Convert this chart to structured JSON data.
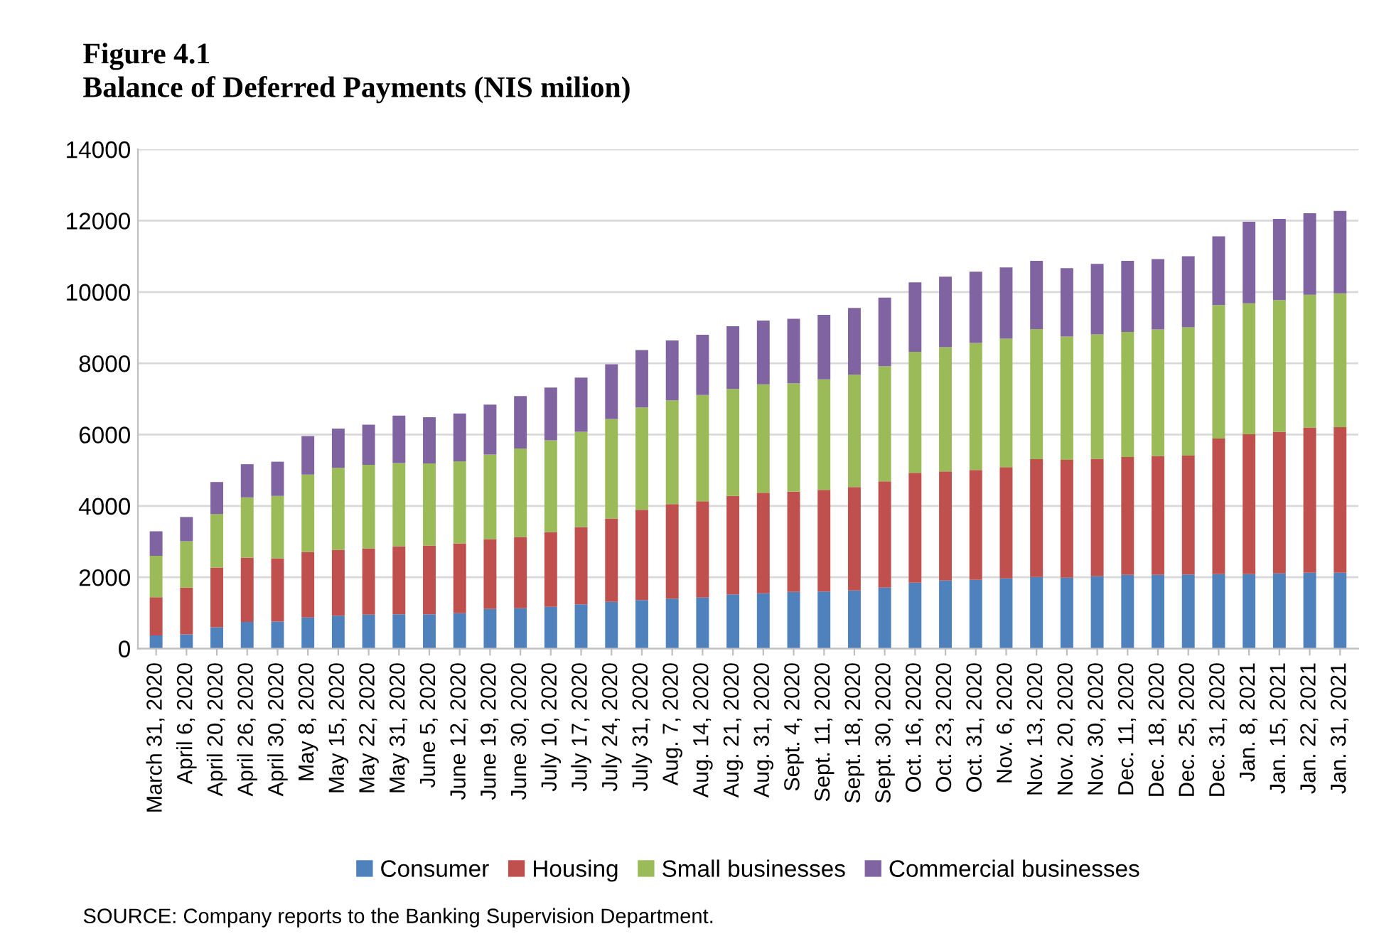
{
  "chart_data": {
    "type": "bar",
    "stacked": true,
    "title": "Figure 4.1",
    "subtitle": "Balance of Deferred Payments (NIS milion)",
    "categories": [
      "March 31, 2020",
      "April 6, 2020",
      "April 20, 2020",
      "April 26, 2020",
      "April 30, 2020",
      "May 8, 2020",
      "May 15, 2020",
      "May 22, 2020",
      "May 31, 2020",
      "June 5, 2020",
      "June 12, 2020",
      "June 19, 2020",
      "June 30, 2020",
      "July 10, 2020",
      "July 17, 2020",
      "July 24, 2020",
      "July 31, 2020",
      "Aug. 7, 2020",
      "Aug. 14, 2020",
      "Aug. 21, 2020",
      "Aug. 31, 2020",
      "Sept. 4, 2020",
      "Sept. 11, 2020",
      "Sept. 18, 2020",
      "Sept. 30, 2020",
      "Oct. 16, 2020",
      "Oct. 23, 2020",
      "Oct. 31, 2020",
      "Nov. 6, 2020",
      "Nov. 13, 2020",
      "Nov. 20, 2020",
      "Nov. 30, 2020",
      "Dec. 11, 2020",
      "Dec. 18, 2020",
      "Dec. 25, 2020",
      "Dec. 31, 2020",
      "Jan. 8, 2021",
      "Jan. 15, 2021",
      "Jan. 22, 2021",
      "Jan. 31, 2021"
    ],
    "series": [
      {
        "name": "Consumer",
        "color": "#4f81bd",
        "values": [
          370,
          400,
          600,
          750,
          760,
          870,
          920,
          950,
          960,
          960,
          990,
          1110,
          1130,
          1170,
          1240,
          1310,
          1360,
          1400,
          1430,
          1520,
          1550,
          1590,
          1600,
          1630,
          1710,
          1850,
          1910,
          1930,
          1970,
          2010,
          1990,
          2030,
          2070,
          2070,
          2080,
          2090,
          2090,
          2110,
          2130,
          2130
        ]
      },
      {
        "name": "Housing",
        "color": "#c0504d",
        "values": [
          1070,
          1310,
          1670,
          1800,
          1770,
          1840,
          1850,
          1860,
          1910,
          1930,
          1960,
          1960,
          2000,
          2100,
          2170,
          2340,
          2530,
          2650,
          2700,
          2760,
          2820,
          2810,
          2850,
          2900,
          2980,
          3080,
          3060,
          3080,
          3120,
          3300,
          3300,
          3290,
          3300,
          3330,
          3330,
          3800,
          3920,
          3970,
          4070,
          4080
        ]
      },
      {
        "name": "Small businesses",
        "color": "#9bbb59",
        "values": [
          1160,
          1300,
          1500,
          1690,
          1750,
          2170,
          2300,
          2340,
          2330,
          2300,
          2300,
          2370,
          2480,
          2570,
          2670,
          2790,
          2870,
          2910,
          2980,
          3000,
          3040,
          3040,
          3100,
          3150,
          3230,
          3390,
          3480,
          3560,
          3600,
          3650,
          3460,
          3490,
          3510,
          3550,
          3600,
          3740,
          3670,
          3690,
          3720,
          3750
        ]
      },
      {
        "name": "Commercial businesses",
        "color": "#8064a2",
        "values": [
          690,
          680,
          900,
          930,
          960,
          1080,
          1100,
          1130,
          1330,
          1300,
          1340,
          1400,
          1470,
          1480,
          1520,
          1530,
          1610,
          1680,
          1690,
          1760,
          1790,
          1810,
          1810,
          1870,
          1920,
          1950,
          1980,
          2000,
          2000,
          1910,
          1920,
          1980,
          1990,
          1970,
          1990,
          1930,
          2290,
          2280,
          2290,
          2310
        ]
      }
    ],
    "ylim": [
      0,
      14000
    ],
    "yticks": [
      0,
      2000,
      4000,
      6000,
      8000,
      10000,
      12000,
      14000
    ],
    "grid": "y",
    "legend": "bottom",
    "annotations": [
      "SOURCE: Company reports to the Banking Supervision Department."
    ]
  }
}
